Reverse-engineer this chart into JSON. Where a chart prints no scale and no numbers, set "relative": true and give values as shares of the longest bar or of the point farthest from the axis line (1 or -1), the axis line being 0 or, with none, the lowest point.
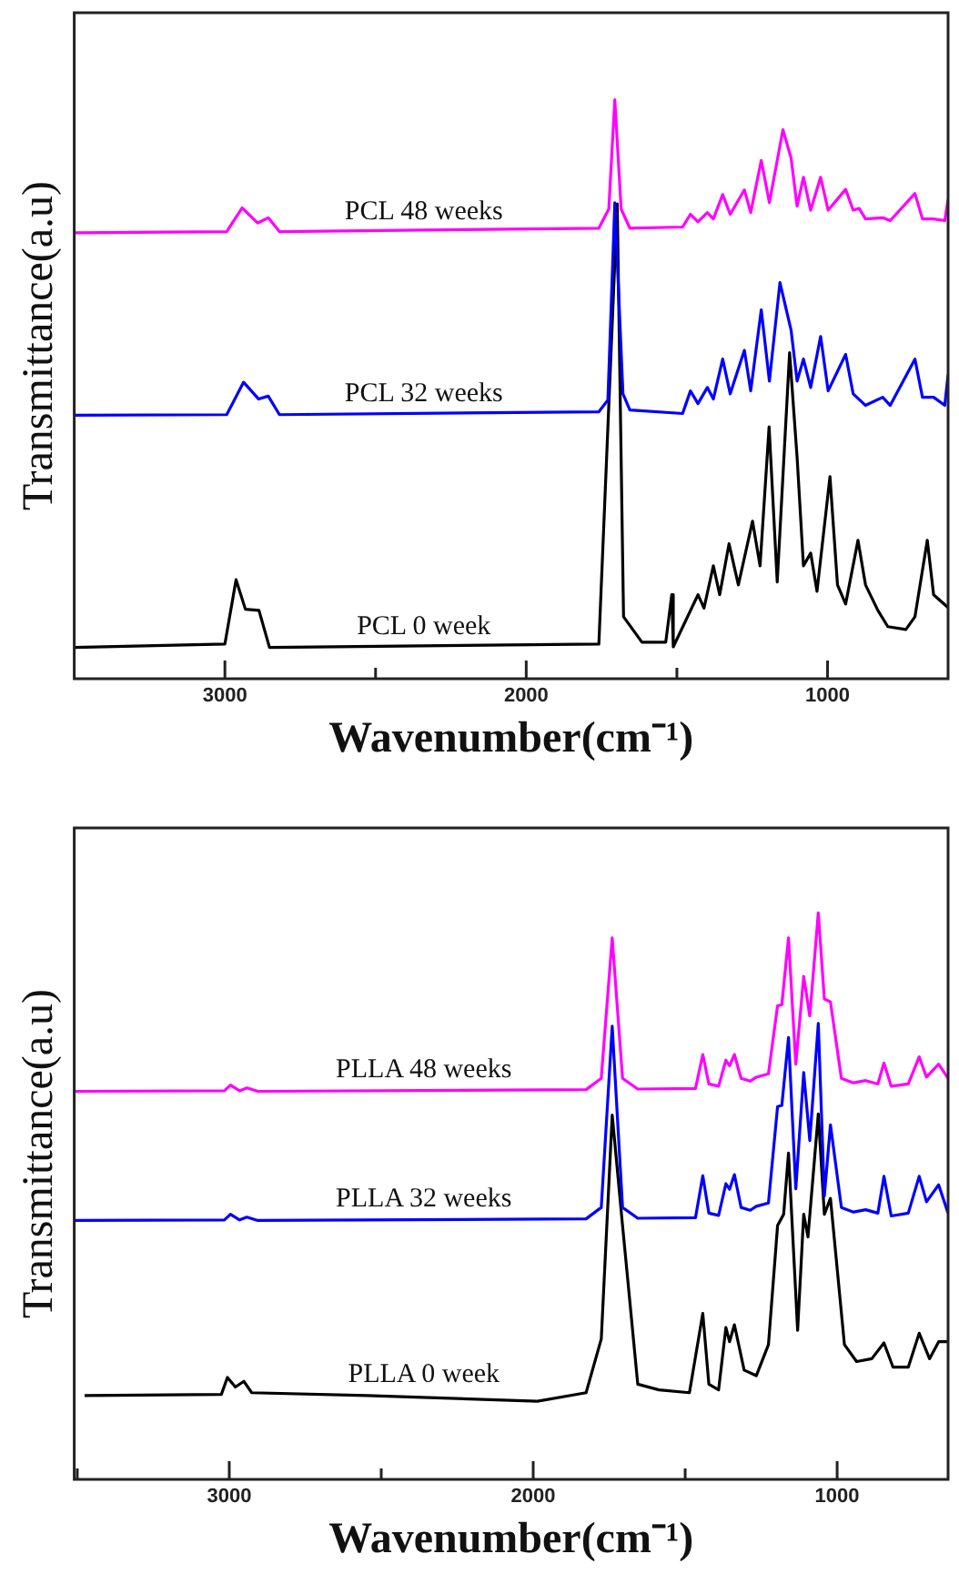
{
  "chart_data": [
    {
      "type": "line",
      "relative": true,
      "xlabel": "Wavenumber(cm⁻¹)",
      "ylabel": "Transmittance(a.u)",
      "tick_labels": "x",
      "marker": "none",
      "line_style": "solid",
      "xlim": [
        3500,
        600
      ],
      "xticks": [
        3000,
        {
          "value": 2500,
          "label": null
        },
        2000,
        {
          "value": 1500,
          "label": null
        },
        1000
      ],
      "series": [
        {
          "name": "PCL 48 weeks",
          "color": "#ff00ff",
          "x": [
            3500,
            2994,
            2943,
            2891,
            2856,
            2819,
            1759,
            1726,
            1706,
            1685,
            1656,
            1481,
            1455,
            1430,
            1399,
            1379,
            1348,
            1323,
            1276,
            1255,
            1220,
            1193,
            1148,
            1121,
            1101,
            1080,
            1056,
            1023,
            998,
            940,
            915,
            895,
            874,
            817,
            792,
            710,
            685,
            648,
            611,
            600
          ],
          "values": [
            0.77,
            0.772,
            0.813,
            0.787,
            0.796,
            0.772,
            0.778,
            0.811,
            1.0,
            0.811,
            0.778,
            0.78,
            0.802,
            0.789,
            0.805,
            0.794,
            0.836,
            0.802,
            0.844,
            0.805,
            0.895,
            0.822,
            0.948,
            0.899,
            0.816,
            0.866,
            0.809,
            0.866,
            0.809,
            0.845,
            0.809,
            0.812,
            0.794,
            0.796,
            0.791,
            0.838,
            0.794,
            0.794,
            0.791,
            0.827
          ]
        },
        {
          "name": "PCL 32 weeks",
          "color": "#0000ff",
          "x": [
            3500,
            2994,
            2938,
            2888,
            2856,
            2819,
            1759,
            1729,
            1706,
            1679,
            1656,
            1481,
            1455,
            1430,
            1399,
            1379,
            1348,
            1323,
            1276,
            1255,
            1220,
            1193,
            1158,
            1121,
            1101,
            1080,
            1056,
            1023,
            998,
            940,
            915,
            874,
            817,
            792,
            710,
            685,
            648,
            611,
            600
          ],
          "values": [
            0.455,
            0.456,
            0.512,
            0.483,
            0.488,
            0.456,
            0.461,
            0.481,
            0.822,
            0.492,
            0.464,
            0.458,
            0.497,
            0.475,
            0.503,
            0.483,
            0.552,
            0.492,
            0.567,
            0.497,
            0.637,
            0.514,
            0.684,
            0.602,
            0.514,
            0.552,
            0.503,
            0.591,
            0.497,
            0.56,
            0.492,
            0.472,
            0.486,
            0.472,
            0.552,
            0.486,
            0.486,
            0.472,
            0.525
          ]
        },
        {
          "name": "PCL 0 week",
          "color": "#000000",
          "x": [
            3500,
            3000,
            2963,
            2932,
            2887,
            2852,
            1759,
            1698,
            1677,
            1616,
            1537,
            1517,
            1512,
            1430,
            1410,
            1379,
            1358,
            1327,
            1296,
            1249,
            1224,
            1194,
            1167,
            1126,
            1101,
            1080,
            1056,
            1035,
            992,
            967,
            940,
            899,
            874,
            833,
            800,
            740,
            710,
            669,
            648,
            600
          ],
          "values": [
            0.054,
            0.06,
            0.171,
            0.12,
            0.118,
            0.054,
            0.06,
            0.82,
            0.107,
            0.063,
            0.063,
            0.145,
            0.055,
            0.145,
            0.122,
            0.195,
            0.145,
            0.233,
            0.162,
            0.272,
            0.195,
            0.435,
            0.167,
            0.563,
            0.382,
            0.195,
            0.217,
            0.151,
            0.349,
            0.162,
            0.129,
            0.239,
            0.162,
            0.118,
            0.09,
            0.085,
            0.107,
            0.239,
            0.145,
            0.123
          ]
        }
      ]
    },
    {
      "type": "line",
      "relative": true,
      "xlabel": "Wavenumber(cm⁻¹)",
      "ylabel": "Transmittance(a.u)",
      "tick_labels": "x",
      "marker": "none",
      "line_style": "solid",
      "xlim": [
        3510,
        635
      ],
      "xticks": [
        {
          "value": 3500,
          "label": null
        },
        3000,
        {
          "value": 2500,
          "label": null
        },
        2000,
        {
          "value": 1500,
          "label": null
        },
        1000
      ],
      "series": [
        {
          "name": "PLLA 48 weeks",
          "color": "#ff00ff",
          "x": [
            3506,
            3016,
            2996,
            2966,
            2942,
            2906,
            1826,
            1776,
            1740,
            1706,
            1656,
            1466,
            1442,
            1422,
            1390,
            1366,
            1354,
            1338,
            1316,
            1286,
            1266,
            1226,
            1196,
            1182,
            1160,
            1136,
            1110,
            1090,
            1062,
            1042,
            1022,
            986,
            946,
            906,
            866,
            846,
            822,
            766,
            730,
            706,
            666,
            635
          ],
          "values": [
            0.685,
            0.686,
            0.696,
            0.686,
            0.691,
            0.685,
            0.688,
            0.708,
            0.956,
            0.708,
            0.689,
            0.69,
            0.75,
            0.698,
            0.694,
            0.74,
            0.73,
            0.75,
            0.708,
            0.703,
            0.71,
            0.716,
            0.836,
            0.838,
            0.956,
            0.733,
            0.888,
            0.818,
            1.0,
            0.848,
            0.843,
            0.708,
            0.7,
            0.704,
            0.698,
            0.735,
            0.694,
            0.698,
            0.746,
            0.71,
            0.733,
            0.708
          ]
        },
        {
          "name": "PLLA 32 weeks",
          "color": "#0000ff",
          "x": [
            3506,
            3016,
            2996,
            2966,
            2942,
            2906,
            1826,
            1776,
            1740,
            1706,
            1656,
            1466,
            1442,
            1422,
            1390,
            1366,
            1354,
            1338,
            1316,
            1286,
            1266,
            1226,
            1196,
            1182,
            1160,
            1136,
            1110,
            1090,
            1062,
            1042,
            1022,
            986,
            946,
            906,
            866,
            846,
            822,
            766,
            730,
            706,
            666,
            635
          ],
          "values": [
            0.457,
            0.458,
            0.468,
            0.458,
            0.463,
            0.457,
            0.46,
            0.48,
            0.8,
            0.48,
            0.461,
            0.462,
            0.536,
            0.47,
            0.466,
            0.522,
            0.512,
            0.538,
            0.48,
            0.475,
            0.482,
            0.488,
            0.658,
            0.66,
            0.78,
            0.513,
            0.718,
            0.598,
            0.805,
            0.5,
            0.626,
            0.48,
            0.472,
            0.476,
            0.47,
            0.535,
            0.465,
            0.47,
            0.535,
            0.49,
            0.52,
            0.47
          ]
        },
        {
          "name": "PLLA 0 week",
          "color": "#000000",
          "x": [
            3476,
            3026,
            3006,
            2980,
            2952,
            2926,
            2546,
            1986,
            1826,
            1776,
            1740,
            1706,
            1656,
            1586,
            1486,
            1442,
            1422,
            1390,
            1366,
            1354,
            1338,
            1306,
            1266,
            1226,
            1196,
            1176,
            1160,
            1130,
            1110,
            1096,
            1062,
            1042,
            1022,
            976,
            936,
            886,
            846,
            816,
            766,
            730,
            696,
            666,
            635
          ],
          "values": [
            0.148,
            0.15,
            0.18,
            0.163,
            0.173,
            0.153,
            0.148,
            0.138,
            0.153,
            0.248,
            0.643,
            0.448,
            0.168,
            0.158,
            0.153,
            0.293,
            0.168,
            0.158,
            0.268,
            0.243,
            0.273,
            0.193,
            0.183,
            0.238,
            0.448,
            0.468,
            0.576,
            0.263,
            0.468,
            0.428,
            0.645,
            0.468,
            0.496,
            0.238,
            0.208,
            0.213,
            0.241,
            0.198,
            0.198,
            0.258,
            0.213,
            0.243,
            0.243
          ]
        }
      ]
    }
  ]
}
